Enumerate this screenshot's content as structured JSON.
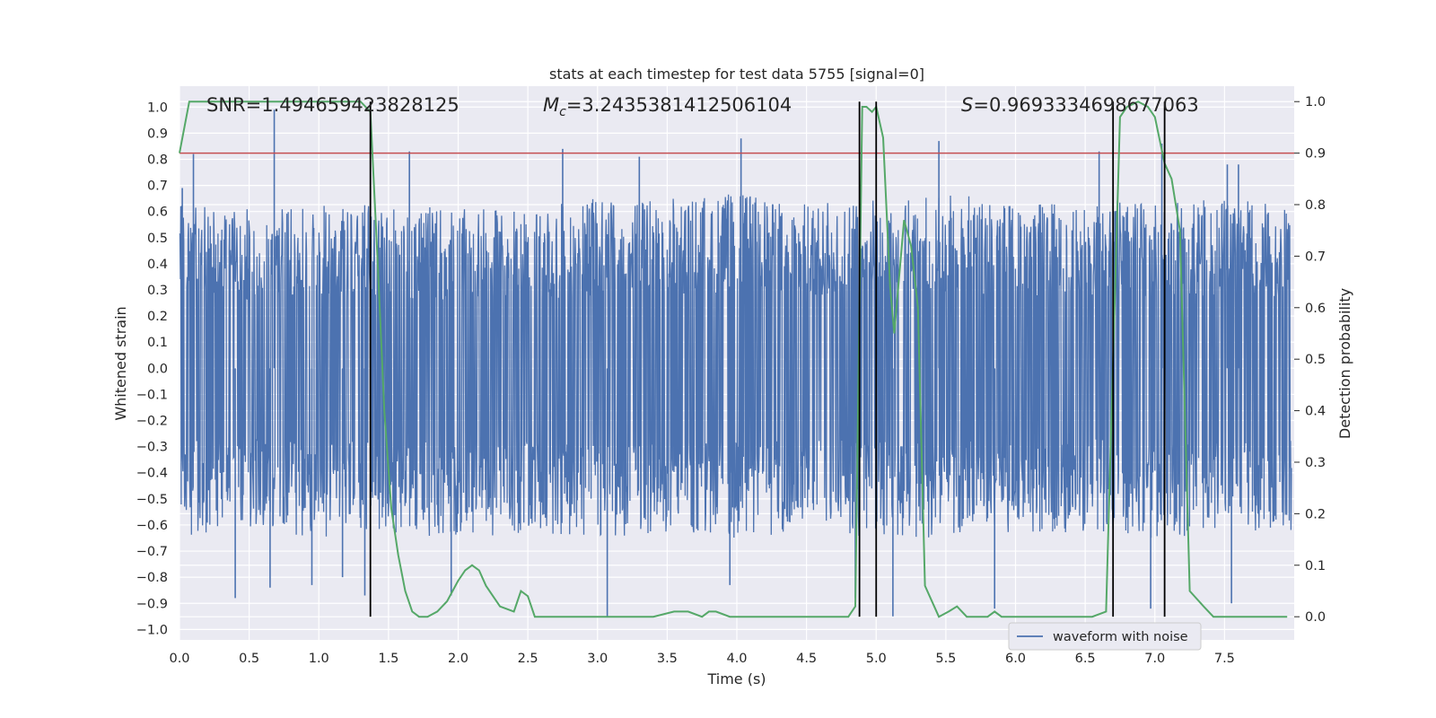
{
  "chart_data": {
    "type": "line",
    "title": "stats at each timestep for test data 5755 [signal=0]",
    "xlabel": "Time (s)",
    "ylabel_left": "Whitened strain",
    "ylabel_right": "Detection probability",
    "xlim": [
      0.0,
      8.0
    ],
    "ylim_left": [
      -1.04,
      1.08
    ],
    "ylim_right": [
      -0.045,
      1.03
    ],
    "x_ticks": [
      "0.0",
      "0.5",
      "1.0",
      "1.5",
      "2.0",
      "2.5",
      "3.0",
      "3.5",
      "4.0",
      "4.5",
      "5.0",
      "5.5",
      "6.0",
      "6.5",
      "7.0",
      "7.5"
    ],
    "y_ticks_left": [
      "1.0",
      "0.9",
      "0.8",
      "0.7",
      "0.6",
      "0.5",
      "0.4",
      "0.3",
      "0.2",
      "0.1",
      "0.0",
      "-0.1",
      "-0.2",
      "-0.3",
      "-0.4",
      "-0.5",
      "-0.6",
      "-0.7",
      "-0.8",
      "-0.9",
      "-1.0"
    ],
    "y_ticks_right": [
      "1.0",
      "0.9",
      "0.8",
      "0.7",
      "0.6",
      "0.5",
      "0.4",
      "0.3",
      "0.2",
      "0.1",
      "0.0"
    ],
    "grid": true,
    "legend_position": "lower-right",
    "annotations": {
      "snr": "SNR=1.494659423828125",
      "mc_symbol": "M",
      "mc_sub": "c",
      "mc_value": "=3.2435381412506104",
      "s_symbol": "S",
      "s_value": "=0.9693334698677063"
    },
    "series": [
      {
        "name": "waveform with noise",
        "axis": "left",
        "color": "#4c72b0",
        "envelope": {
          "x": [
            0.0,
            0.5,
            1.0,
            1.5,
            2.0,
            2.5,
            3.0,
            3.5,
            4.0,
            4.5,
            5.0,
            5.5,
            6.0,
            6.5,
            7.0,
            7.5,
            7.98
          ],
          "upper": [
            0.62,
            0.58,
            0.6,
            0.6,
            0.58,
            0.58,
            0.62,
            0.62,
            0.64,
            0.6,
            0.62,
            0.64,
            0.6,
            0.62,
            0.6,
            0.62,
            0.6
          ],
          "lower": [
            -0.62,
            -0.58,
            -0.62,
            -0.6,
            -0.62,
            -0.6,
            -0.62,
            -0.6,
            -0.62,
            -0.6,
            -0.62,
            -0.62,
            -0.6,
            -0.6,
            -0.62,
            -0.6,
            -0.6
          ]
        },
        "peaks": [
          {
            "x": 0.02,
            "y": 0.69
          },
          {
            "x": 0.1,
            "y": 0.82
          },
          {
            "x": 0.4,
            "y": -0.88
          },
          {
            "x": 0.65,
            "y": -0.84
          },
          {
            "x": 0.68,
            "y": 0.99
          },
          {
            "x": 0.95,
            "y": -0.83
          },
          {
            "x": 1.17,
            "y": -0.8
          },
          {
            "x": 1.33,
            "y": -0.87
          },
          {
            "x": 1.65,
            "y": 0.83
          },
          {
            "x": 1.95,
            "y": -0.87
          },
          {
            "x": 2.75,
            "y": 0.84
          },
          {
            "x": 3.07,
            "y": -0.95
          },
          {
            "x": 3.3,
            "y": 0.81
          },
          {
            "x": 3.95,
            "y": -0.83
          },
          {
            "x": 4.03,
            "y": 0.88
          },
          {
            "x": 4.85,
            "y": -0.88
          },
          {
            "x": 5.12,
            "y": -0.95
          },
          {
            "x": 5.45,
            "y": 0.87
          },
          {
            "x": 5.85,
            "y": -0.92
          },
          {
            "x": 6.6,
            "y": 0.83
          },
          {
            "x": 6.97,
            "y": -0.92
          },
          {
            "x": 7.05,
            "y": 0.86
          },
          {
            "x": 7.52,
            "y": 0.78
          },
          {
            "x": 7.55,
            "y": -0.9
          },
          {
            "x": 7.6,
            "y": 0.78
          }
        ]
      },
      {
        "name": "",
        "axis": "right",
        "color": "#55a868",
        "x": [
          0.0,
          0.07,
          0.15,
          0.3,
          0.6,
          0.9,
          1.2,
          1.3,
          1.37,
          1.42,
          1.47,
          1.52,
          1.57,
          1.62,
          1.67,
          1.72,
          1.78,
          1.85,
          1.92,
          2.0,
          2.05,
          2.1,
          2.15,
          2.2,
          2.3,
          2.4,
          2.45,
          2.5,
          2.55,
          2.62,
          2.7,
          2.8,
          2.9,
          3.0,
          3.2,
          3.4,
          3.55,
          3.65,
          3.75,
          3.8,
          3.85,
          3.95,
          4.1,
          4.3,
          4.5,
          4.6,
          4.7,
          4.8,
          4.85,
          4.9,
          4.93,
          4.97,
          5.0,
          5.05,
          5.1,
          5.13,
          5.2,
          5.25,
          5.3,
          5.35,
          5.45,
          5.52,
          5.58,
          5.65,
          5.7,
          5.75,
          5.8,
          5.85,
          5.9,
          6.0,
          6.1,
          6.2,
          6.3,
          6.4,
          6.55,
          6.65,
          6.7,
          6.75,
          6.8,
          6.88,
          6.95,
          7.0,
          7.07,
          7.12,
          7.18,
          7.25,
          7.35,
          7.42,
          7.5,
          7.6,
          7.7,
          7.8,
          7.9,
          7.95
        ],
        "y": [
          0.9,
          1.0,
          1.0,
          1.0,
          1.0,
          1.0,
          1.0,
          1.0,
          0.98,
          0.7,
          0.4,
          0.21,
          0.12,
          0.05,
          0.01,
          0.0,
          0.0,
          0.01,
          0.03,
          0.07,
          0.09,
          0.1,
          0.09,
          0.06,
          0.02,
          0.01,
          0.05,
          0.04,
          0.0,
          0.0,
          0.0,
          0.0,
          0.0,
          0.0,
          0.0,
          0.0,
          0.01,
          0.01,
          0.0,
          0.01,
          0.01,
          0.0,
          0.0,
          0.0,
          0.0,
          0.0,
          0.0,
          0.0,
          0.02,
          0.99,
          0.99,
          0.98,
          0.99,
          0.93,
          0.64,
          0.55,
          0.77,
          0.72,
          0.6,
          0.06,
          0.0,
          0.01,
          0.02,
          0.0,
          0.0,
          0.0,
          0.0,
          0.01,
          0.0,
          0.0,
          0.0,
          0.0,
          0.0,
          0.0,
          0.0,
          0.01,
          0.5,
          0.97,
          0.99,
          1.0,
          0.99,
          0.97,
          0.88,
          0.85,
          0.75,
          0.05,
          0.02,
          0.0,
          0.0,
          0.0,
          0.0,
          0.0,
          0.0,
          0.0
        ],
        "legend": false
      }
    ],
    "hlines": [
      {
        "axis": "right",
        "y": 0.9,
        "color": "#c44e52"
      }
    ],
    "vlines": {
      "x": [
        1.37,
        4.88,
        5.0,
        6.7,
        7.07
      ],
      "color": "#000000",
      "axis": "right",
      "ymin": 0.0,
      "ymax": 1.0
    }
  }
}
